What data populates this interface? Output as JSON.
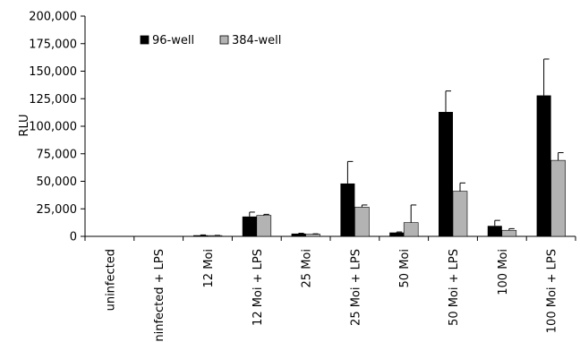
{
  "chart_data": {
    "type": "bar",
    "title": "",
    "xlabel": "",
    "ylabel": "RLU",
    "ylim": [
      0,
      200000
    ],
    "yticks": [
      0,
      25000,
      50000,
      75000,
      100000,
      125000,
      150000,
      175000,
      200000
    ],
    "ytick_labels": [
      "0",
      "25,000",
      "50,000",
      "75,000",
      "100,000",
      "125,000",
      "150,000",
      "175,000",
      "200,000"
    ],
    "categories": [
      "uninfected",
      "uninfected + LPS",
      "12 Moi",
      "12 Moi + LPS",
      "25 Moi",
      "25 Moi + LPS",
      "50 Moi",
      "50 Moi + LPS",
      "100 Moi",
      "100 Moi + LPS"
    ],
    "series": [
      {
        "name": "96-well",
        "color": "#000000",
        "values": [
          0,
          0,
          1000,
          18000,
          2500,
          48000,
          3500,
          113000,
          9500,
          128000
        ],
        "errors": [
          0,
          0,
          300,
          4000,
          300,
          20000,
          500,
          19000,
          5000,
          33000
        ]
      },
      {
        "name": "384-well",
        "color": "#b3b3b3",
        "values": [
          0,
          0,
          700,
          19000,
          2000,
          26500,
          12500,
          41000,
          5500,
          69000
        ],
        "errors": [
          0,
          0,
          200,
          1000,
          300,
          2000,
          16000,
          7500,
          1500,
          7000
        ]
      }
    ],
    "legend_position": "top-left",
    "grid": false
  }
}
